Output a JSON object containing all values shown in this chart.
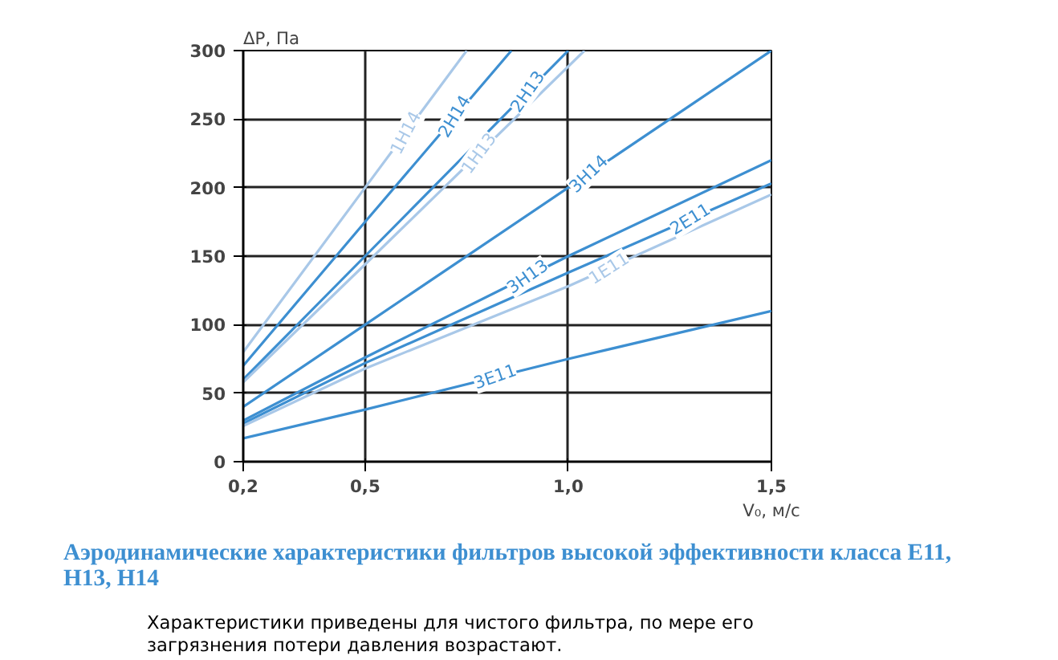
{
  "chart_data": {
    "type": "line",
    "title": "Аэродинамические характеристики фильтров высокой эффективности класса E11, H13, H14",
    "annotations": [
      {
        "text": "1H14",
        "x": 0.6,
        "y": 240
      },
      {
        "text": "2H14",
        "x": 0.72,
        "y": 252
      },
      {
        "text": "2H13",
        "x": 0.9,
        "y": 270
      },
      {
        "text": "1H13",
        "x": 0.78,
        "y": 225
      },
      {
        "text": "3H14",
        "x": 1.05,
        "y": 210
      },
      {
        "text": "3H13",
        "x": 0.9,
        "y": 135
      },
      {
        "text": "2E11",
        "x": 1.3,
        "y": 177
      },
      {
        "text": "1E11",
        "x": 1.1,
        "y": 141
      },
      {
        "text": "3E11",
        "x": 0.82,
        "y": 62
      },
      "Характеристики приведены для чистого фильтра, по мере его загрязнения потери давления возрастают."
    ],
    "xlabel": "V₀, м/с",
    "ylabel": "ΔP, Па",
    "xlim": [
      0.2,
      1.5
    ],
    "ylim": [
      0,
      300
    ],
    "xticks": [
      {
        "value": 0.2,
        "label": "0,2"
      },
      {
        "value": 0.5,
        "label": "0,5"
      },
      {
        "value": 1.0,
        "label": "1,0"
      },
      {
        "value": 1.5,
        "label": "1,5"
      }
    ],
    "yticks": [
      0,
      50,
      100,
      150,
      200,
      250,
      300
    ],
    "grid": true,
    "marker": "none",
    "line_style": "solid",
    "series": [
      {
        "color": "#a9c8e8",
        "x": [
          0.2,
          0.5,
          0.75
        ],
        "values": [
          80,
          200,
          300
        ]
      },
      {
        "color": "#3d8fd1",
        "x": [
          0.2,
          0.5,
          0.86
        ],
        "values": [
          70,
          175,
          300
        ]
      },
      {
        "color": "#3d8fd1",
        "x": [
          0.2,
          0.5,
          1.0
        ],
        "values": [
          60,
          150,
          300
        ]
      },
      {
        "color": "#a9c8e8",
        "x": [
          0.2,
          0.5,
          1.04
        ],
        "values": [
          58,
          144,
          300
        ]
      },
      {
        "color": "#3d8fd1",
        "x": [
          0.2,
          0.5,
          1.0,
          1.5
        ],
        "values": [
          40,
          100,
          200,
          300
        ]
      },
      {
        "color": "#3d8fd1",
        "x": [
          0.2,
          0.5,
          1.0,
          1.5
        ],
        "values": [
          30,
          76,
          150,
          220
        ]
      },
      {
        "color": "#3d8fd1",
        "x": [
          0.2,
          0.5,
          1.0,
          1.5
        ],
        "values": [
          28,
          72,
          138,
          203
        ]
      },
      {
        "color": "#a9c8e8",
        "x": [
          0.2,
          0.5,
          1.0,
          1.5
        ],
        "values": [
          26,
          68,
          128,
          195
        ]
      },
      {
        "color": "#3d8fd1",
        "x": [
          0.2,
          0.5,
          1.0,
          1.5
        ],
        "values": [
          17,
          38,
          75,
          110
        ]
      }
    ]
  }
}
